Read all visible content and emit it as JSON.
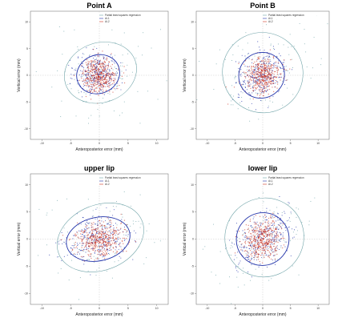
{
  "chart_data": [
    {
      "type": "scatter",
      "title": "Point A",
      "xlabel": "Anteroposterior error (mm)",
      "ylabel": "Vertical error (mm)",
      "xlim": [
        -12,
        12
      ],
      "ylim": [
        -12,
        12
      ],
      "xticks": [
        -10,
        -5,
        0,
        5,
        10
      ],
      "yticks": [
        -10,
        -5,
        0,
        5,
        10
      ],
      "grid": false,
      "legend": "top-right",
      "series": [
        {
          "name": "Partial least squares regression",
          "color": "#6fa3a8",
          "symbol": "square",
          "center": [
            0.2,
            0.5
          ],
          "spread": [
            3.2,
            2.8
          ],
          "corr": 0.1
        },
        {
          "name": "Ai-1",
          "color": "#2233aa",
          "symbol": "circle",
          "center": [
            -0.2,
            0.2
          ],
          "spread": [
            1.9,
            1.8
          ],
          "corr": 0.05
        },
        {
          "name": "Ai-2",
          "color": "#cc3322",
          "symbol": "plus",
          "center": [
            0.0,
            0.0
          ],
          "spread": [
            1.5,
            1.6
          ],
          "corr": 0.0
        }
      ]
    },
    {
      "type": "scatter",
      "title": "Point B",
      "xlabel": "Anteroposterior error (mm)",
      "ylabel": "Vertical error (mm)",
      "xlim": [
        -12,
        12
      ],
      "ylim": [
        -12,
        12
      ],
      "xticks": [
        -10,
        -5,
        0,
        5,
        10
      ],
      "yticks": [
        -10,
        -5,
        0,
        5,
        10
      ],
      "grid": false,
      "legend": "top-right",
      "series": [
        {
          "name": "Partial least squares regression",
          "color": "#6fa3a8",
          "symbol": "square",
          "center": [
            0.0,
            0.5
          ],
          "spread": [
            3.6,
            3.8
          ],
          "corr": 0.35
        },
        {
          "name": "Ai-1",
          "color": "#2233aa",
          "symbol": "circle",
          "center": [
            -0.2,
            0.0
          ],
          "spread": [
            2.1,
            2.1
          ],
          "corr": 0.2
        },
        {
          "name": "Ai-2",
          "color": "#cc3322",
          "symbol": "plus",
          "center": [
            0.0,
            0.0
          ],
          "spread": [
            1.6,
            1.7
          ],
          "corr": 0.1
        }
      ]
    },
    {
      "type": "scatter",
      "title": "upper lip",
      "xlabel": "Anteroposterior error (mm)",
      "ylabel": "Vertical error (mm)",
      "xlim": [
        -12,
        12
      ],
      "ylim": [
        -12,
        12
      ],
      "xticks": [
        -10,
        -5,
        0,
        5,
        10
      ],
      "yticks": [
        -10,
        -5,
        0,
        5,
        10
      ],
      "grid": false,
      "legend": "top-right",
      "series": [
        {
          "name": "Partial least squares regression",
          "color": "#6fa3a8",
          "symbol": "square",
          "center": [
            0.2,
            0.3
          ],
          "spread": [
            3.9,
            3.0
          ],
          "corr": 0.25
        },
        {
          "name": "Ai-1",
          "color": "#2233aa",
          "symbol": "circle",
          "center": [
            -0.2,
            0.0
          ],
          "spread": [
            2.8,
            2.0
          ],
          "corr": 0.15
        },
        {
          "name": "Ai-2",
          "color": "#cc3322",
          "symbol": "plus",
          "center": [
            0.0,
            0.0
          ],
          "spread": [
            2.0,
            1.6
          ],
          "corr": 0.05
        }
      ]
    },
    {
      "type": "scatter",
      "title": "lower lip",
      "xlabel": "Anteroposterior error (mm)",
      "ylabel": "Vertical error (mm)",
      "xlim": [
        -12,
        12
      ],
      "ylim": [
        -12,
        12
      ],
      "xticks": [
        -10,
        -5,
        0,
        5,
        10
      ],
      "yticks": [
        -10,
        -5,
        0,
        5,
        10
      ],
      "grid": false,
      "legend": "top-right",
      "series": [
        {
          "name": "Partial least squares regression",
          "color": "#6fa3a8",
          "symbol": "square",
          "center": [
            0.3,
            0.3
          ],
          "spread": [
            3.6,
            3.6
          ],
          "corr": 0.45
        },
        {
          "name": "Ai-1",
          "color": "#2233aa",
          "symbol": "circle",
          "center": [
            0.0,
            0.0
          ],
          "spread": [
            2.4,
            2.4
          ],
          "corr": 0.35
        },
        {
          "name": "Ai-2",
          "color": "#cc3322",
          "symbol": "plus",
          "center": [
            0.0,
            0.0
          ],
          "spread": [
            1.7,
            1.7
          ],
          "corr": 0.2
        }
      ]
    }
  ]
}
